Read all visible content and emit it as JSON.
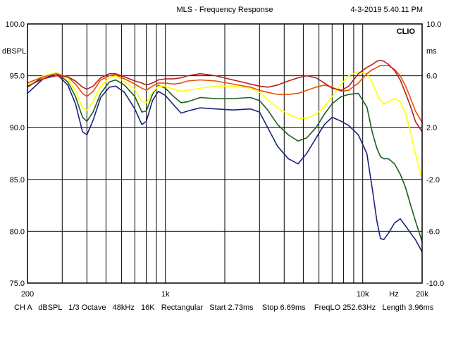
{
  "header": {
    "title": "MLS - Frequency Response",
    "timestamp": "4-3-2019 5.40.11 PM"
  },
  "brand": "CLIO",
  "footer": {
    "channel": "CH A",
    "units": "dBSPL",
    "smoothing": "1/3 Octave",
    "sample_rate": "48kHz",
    "size": "16K",
    "window": "Rectangular",
    "start": "Start 2.73ms",
    "stop": "Stop 6.69ms",
    "freqlo": "FreqLO 252.63Hz",
    "length": "Length 3.96ms"
  },
  "chart_data": {
    "type": "line",
    "xscale": "log",
    "xlim": [
      200,
      20000
    ],
    "ylim": [
      75,
      100
    ],
    "y2lim": [
      -10,
      10
    ],
    "left_axis_unit": "dBSPL",
    "right_axis_unit": "ms",
    "x_unit": "Hz",
    "grid": true,
    "x_tick_labels": [
      {
        "value": 200,
        "label": "200"
      },
      {
        "value": 1000,
        "label": "1k"
      },
      {
        "value": 10000,
        "label": "10k"
      },
      {
        "value": 20000,
        "label": "20k"
      }
    ],
    "y_ticks": [
      "100.0",
      "95.0",
      "90.0",
      "85.0",
      "80.0",
      "75.0"
    ],
    "y2_ticks": [
      "10.0",
      "6.0",
      "2.0",
      "-2.0",
      "-6.0",
      "-10.0"
    ],
    "series": [
      {
        "color": "#1a237e",
        "points": [
          [
            200,
            93.3
          ],
          [
            240,
            94.7
          ],
          [
            280,
            95.2
          ],
          [
            320,
            94.1
          ],
          [
            350,
            92.3
          ],
          [
            380,
            89.6
          ],
          [
            400,
            89.3
          ],
          [
            430,
            90.7
          ],
          [
            470,
            92.9
          ],
          [
            520,
            93.9
          ],
          [
            560,
            94.0
          ],
          [
            620,
            93.4
          ],
          [
            700,
            91.8
          ],
          [
            760,
            90.3
          ],
          [
            800,
            90.6
          ],
          [
            860,
            92.6
          ],
          [
            920,
            93.5
          ],
          [
            1000,
            93.1
          ],
          [
            1100,
            92.2
          ],
          [
            1200,
            91.4
          ],
          [
            1300,
            91.6
          ],
          [
            1500,
            91.9
          ],
          [
            1800,
            91.8
          ],
          [
            2200,
            91.7
          ],
          [
            2700,
            91.8
          ],
          [
            3000,
            91.5
          ],
          [
            3300,
            90.0
          ],
          [
            3700,
            88.2
          ],
          [
            4200,
            87.0
          ],
          [
            4700,
            86.5
          ],
          [
            5200,
            87.5
          ],
          [
            5800,
            89.0
          ],
          [
            6400,
            90.3
          ],
          [
            7000,
            91.0
          ],
          [
            7800,
            90.6
          ],
          [
            8500,
            90.2
          ],
          [
            9500,
            89.3
          ],
          [
            10500,
            87.5
          ],
          [
            11200,
            84.0
          ],
          [
            11800,
            81.0
          ],
          [
            12300,
            79.3
          ],
          [
            12800,
            79.2
          ],
          [
            13500,
            79.8
          ],
          [
            14500,
            80.8
          ],
          [
            15500,
            81.2
          ],
          [
            16500,
            80.5
          ],
          [
            17500,
            79.8
          ],
          [
            18500,
            79.2
          ],
          [
            20000,
            78.0
          ]
        ]
      },
      {
        "color": "#1b5e20",
        "points": [
          [
            200,
            93.9
          ],
          [
            240,
            94.9
          ],
          [
            280,
            95.3
          ],
          [
            320,
            94.4
          ],
          [
            350,
            93.0
          ],
          [
            380,
            91.0
          ],
          [
            400,
            90.6
          ],
          [
            430,
            91.5
          ],
          [
            470,
            93.3
          ],
          [
            520,
            94.4
          ],
          [
            560,
            94.6
          ],
          [
            620,
            94.1
          ],
          [
            700,
            93.0
          ],
          [
            760,
            91.5
          ],
          [
            800,
            91.6
          ],
          [
            860,
            93.2
          ],
          [
            920,
            94.1
          ],
          [
            1000,
            93.8
          ],
          [
            1100,
            93.0
          ],
          [
            1200,
            92.4
          ],
          [
            1300,
            92.5
          ],
          [
            1500,
            92.9
          ],
          [
            1800,
            92.8
          ],
          [
            2200,
            92.8
          ],
          [
            2700,
            92.9
          ],
          [
            3000,
            92.6
          ],
          [
            3300,
            91.7
          ],
          [
            3700,
            90.3
          ],
          [
            4200,
            89.3
          ],
          [
            4700,
            88.7
          ],
          [
            5200,
            89.0
          ],
          [
            5800,
            90.0
          ],
          [
            6400,
            91.3
          ],
          [
            7000,
            92.3
          ],
          [
            7800,
            93.0
          ],
          [
            8500,
            93.2
          ],
          [
            9500,
            93.3
          ],
          [
            10500,
            92.0
          ],
          [
            11200,
            89.5
          ],
          [
            11800,
            88.0
          ],
          [
            12300,
            87.2
          ],
          [
            12800,
            87.0
          ],
          [
            13500,
            87.0
          ],
          [
            14500,
            86.5
          ],
          [
            15500,
            85.5
          ],
          [
            16500,
            84.2
          ],
          [
            17500,
            82.5
          ],
          [
            18500,
            81.0
          ],
          [
            20000,
            79.0
          ]
        ]
      },
      {
        "color": "#ffff00",
        "points": [
          [
            200,
            94.2
          ],
          [
            240,
            95.0
          ],
          [
            280,
            95.3
          ],
          [
            320,
            94.7
          ],
          [
            350,
            93.6
          ],
          [
            380,
            91.9
          ],
          [
            400,
            91.7
          ],
          [
            430,
            92.5
          ],
          [
            470,
            94.0
          ],
          [
            520,
            94.8
          ],
          [
            560,
            95.0
          ],
          [
            620,
            94.4
          ],
          [
            700,
            93.7
          ],
          [
            760,
            92.5
          ],
          [
            800,
            92.4
          ],
          [
            860,
            93.4
          ],
          [
            920,
            94.0
          ],
          [
            1000,
            94.0
          ],
          [
            1100,
            93.7
          ],
          [
            1200,
            93.5
          ],
          [
            1300,
            93.6
          ],
          [
            1500,
            93.8
          ],
          [
            1800,
            94.0
          ],
          [
            2200,
            94.0
          ],
          [
            2700,
            93.8
          ],
          [
            3000,
            93.4
          ],
          [
            3300,
            92.7
          ],
          [
            3700,
            91.9
          ],
          [
            4200,
            91.3
          ],
          [
            4700,
            90.9
          ],
          [
            5200,
            90.9
          ],
          [
            5800,
            91.3
          ],
          [
            6400,
            92.0
          ],
          [
            7000,
            93.0
          ],
          [
            7800,
            94.2
          ],
          [
            8500,
            95.0
          ],
          [
            9500,
            95.4
          ],
          [
            10500,
            95.2
          ],
          [
            11200,
            94.3
          ],
          [
            11800,
            93.3
          ],
          [
            12300,
            92.6
          ],
          [
            12800,
            92.3
          ],
          [
            13500,
            92.5
          ],
          [
            14500,
            92.8
          ],
          [
            15500,
            92.5
          ],
          [
            16500,
            91.3
          ],
          [
            17500,
            89.5
          ],
          [
            18500,
            87.5
          ],
          [
            20000,
            85.0
          ]
        ]
      },
      {
        "color": "#e65100",
        "points": [
          [
            200,
            94.3
          ],
          [
            240,
            94.9
          ],
          [
            280,
            95.2
          ],
          [
            320,
            94.9
          ],
          [
            350,
            94.2
          ],
          [
            380,
            93.3
          ],
          [
            400,
            93.0
          ],
          [
            430,
            93.5
          ],
          [
            470,
            94.6
          ],
          [
            520,
            95.0
          ],
          [
            560,
            95.1
          ],
          [
            620,
            94.7
          ],
          [
            700,
            94.2
          ],
          [
            760,
            93.8
          ],
          [
            800,
            93.6
          ],
          [
            860,
            94.0
          ],
          [
            920,
            94.3
          ],
          [
            1000,
            94.3
          ],
          [
            1100,
            94.2
          ],
          [
            1200,
            94.3
          ],
          [
            1300,
            94.5
          ],
          [
            1500,
            94.6
          ],
          [
            1800,
            94.5
          ],
          [
            2200,
            94.2
          ],
          [
            2700,
            93.9
          ],
          [
            3000,
            93.6
          ],
          [
            3300,
            93.4
          ],
          [
            3700,
            93.2
          ],
          [
            4200,
            93.2
          ],
          [
            4700,
            93.3
          ],
          [
            5200,
            93.6
          ],
          [
            5800,
            93.9
          ],
          [
            6400,
            94.1
          ],
          [
            7000,
            93.9
          ],
          [
            7800,
            93.5
          ],
          [
            8500,
            93.6
          ],
          [
            9500,
            94.3
          ],
          [
            10500,
            95.2
          ],
          [
            11200,
            95.6
          ],
          [
            11800,
            95.8
          ],
          [
            12300,
            96.0
          ],
          [
            12800,
            96.0
          ],
          [
            13500,
            96.0
          ],
          [
            14500,
            95.6
          ],
          [
            15500,
            95.0
          ],
          [
            16500,
            94.0
          ],
          [
            17500,
            92.8
          ],
          [
            18500,
            91.6
          ],
          [
            20000,
            90.5
          ]
        ]
      },
      {
        "color": "#b71c1c",
        "points": [
          [
            200,
            94.0
          ],
          [
            240,
            94.7
          ],
          [
            280,
            95.0
          ],
          [
            320,
            94.9
          ],
          [
            350,
            94.5
          ],
          [
            380,
            93.9
          ],
          [
            400,
            93.7
          ],
          [
            430,
            94.0
          ],
          [
            470,
            94.8
          ],
          [
            520,
            95.2
          ],
          [
            560,
            95.2
          ],
          [
            620,
            94.9
          ],
          [
            700,
            94.5
          ],
          [
            760,
            94.3
          ],
          [
            800,
            94.1
          ],
          [
            860,
            94.3
          ],
          [
            920,
            94.6
          ],
          [
            1000,
            94.7
          ],
          [
            1100,
            94.7
          ],
          [
            1200,
            94.8
          ],
          [
            1300,
            95.0
          ],
          [
            1500,
            95.2
          ],
          [
            1800,
            95.0
          ],
          [
            2200,
            94.6
          ],
          [
            2700,
            94.2
          ],
          [
            3000,
            94.0
          ],
          [
            3300,
            93.9
          ],
          [
            3700,
            94.1
          ],
          [
            4200,
            94.5
          ],
          [
            4700,
            94.8
          ],
          [
            5200,
            95.0
          ],
          [
            5800,
            94.8
          ],
          [
            6400,
            94.3
          ],
          [
            7000,
            93.8
          ],
          [
            7800,
            93.6
          ],
          [
            8500,
            94.0
          ],
          [
            9500,
            95.2
          ],
          [
            10500,
            95.8
          ],
          [
            11200,
            96.1
          ],
          [
            11800,
            96.4
          ],
          [
            12300,
            96.5
          ],
          [
            12800,
            96.4
          ],
          [
            13500,
            96.1
          ],
          [
            14500,
            95.5
          ],
          [
            15500,
            94.6
          ],
          [
            16500,
            93.3
          ],
          [
            17500,
            92.0
          ],
          [
            18500,
            90.6
          ],
          [
            20000,
            89.6
          ]
        ]
      }
    ]
  }
}
